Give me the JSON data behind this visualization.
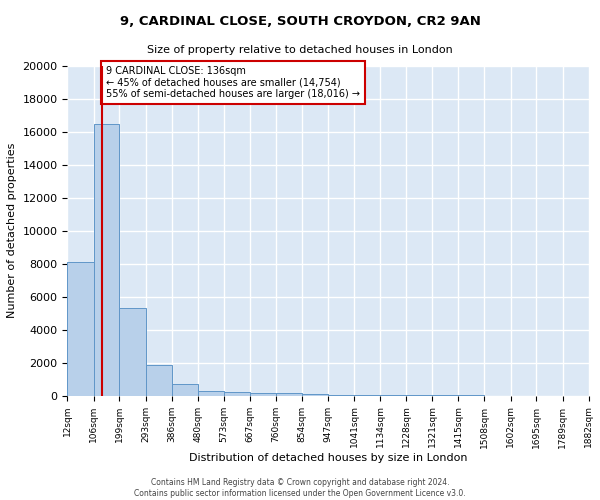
{
  "title1": "9, CARDINAL CLOSE, SOUTH CROYDON, CR2 9AN",
  "title2": "Size of property relative to detached houses in London",
  "xlabel": "Distribution of detached houses by size in London",
  "ylabel": "Number of detached properties",
  "bins": [
    12,
    106,
    199,
    293,
    386,
    480,
    573,
    667,
    760,
    854,
    947,
    1041,
    1134,
    1228,
    1321,
    1415,
    1508,
    1602,
    1695,
    1789,
    1882
  ],
  "bin_labels": [
    "12sqm",
    "106sqm",
    "199sqm",
    "293sqm",
    "386sqm",
    "480sqm",
    "573sqm",
    "667sqm",
    "760sqm",
    "854sqm",
    "947sqm",
    "1041sqm",
    "1134sqm",
    "1228sqm",
    "1321sqm",
    "1415sqm",
    "1508sqm",
    "1602sqm",
    "1695sqm",
    "1789sqm",
    "1882sqm"
  ],
  "bar_heights": [
    8100,
    16500,
    5300,
    1850,
    700,
    300,
    200,
    150,
    150,
    100,
    50,
    40,
    30,
    20,
    15,
    10,
    8,
    5,
    4,
    3
  ],
  "bar_color": "#b8d0ea",
  "bar_edge_color": "#6096c8",
  "background_color": "#dce8f5",
  "grid_color": "#ffffff",
  "property_line_x": 136,
  "property_line_color": "#cc0000",
  "annotation_line1": "9 CARDINAL CLOSE: 136sqm",
  "annotation_line2": "← 45% of detached houses are smaller (14,754)",
  "annotation_line3": "55% of semi-detached houses are larger (18,016) →",
  "annotation_box_color": "#ffffff",
  "annotation_box_edge": "#cc0000",
  "footer1": "Contains HM Land Registry data © Crown copyright and database right 2024.",
  "footer2": "Contains public sector information licensed under the Open Government Licence v3.0.",
  "ylim": [
    0,
    20000
  ],
  "yticks": [
    0,
    2000,
    4000,
    6000,
    8000,
    10000,
    12000,
    14000,
    16000,
    18000,
    20000
  ]
}
